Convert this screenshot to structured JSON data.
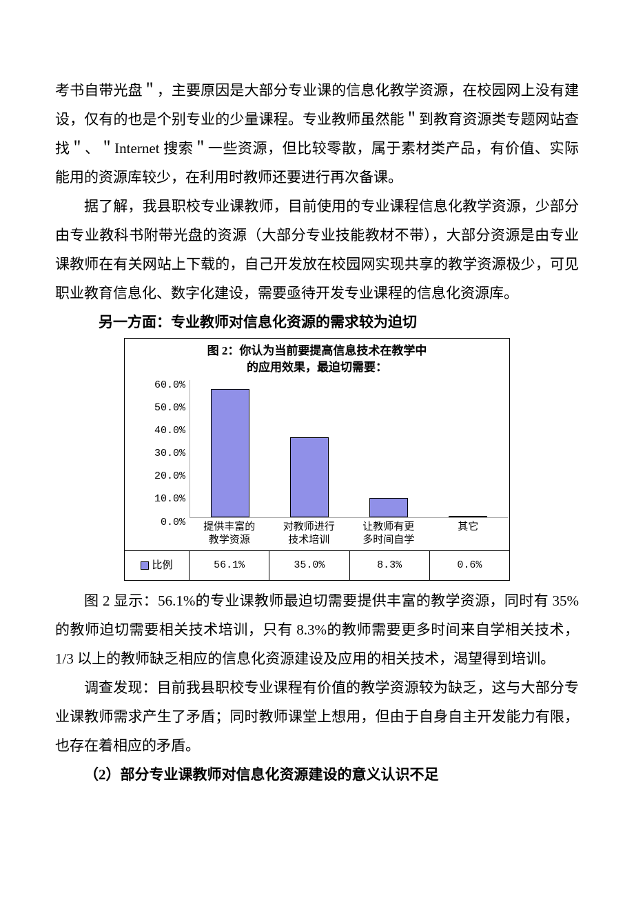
{
  "paragraphs": {
    "p1": "考书自带光盘＂，主要原因是大部分专业课的信息化教学资源，在校园网上没有建设，仅有的也是个别专业的少量课程。专业教师虽然能＂到教育资源类专题网站查找＂、＂Internet 搜索＂一些资源，但比较零散，属于素材类产品，有价值、实际能用的资源库较少，在利用时教师还要进行再次备课。",
    "p2": "据了解，我县职校专业课教师，目前使用的专业课程信息化教学资源，少部分由专业教科书附带光盘的资源（大部分专业技能教材不带），大部分资源是由专业课教师在有关网站上下载的，自己开发放在校园网实现共享的教学资源极少，可见职业教育信息化、数字化建设，需要亟待开发专业课程的信息化资源库。",
    "h1": "另一方面：专业教师对信息化资源的需求较为迫切",
    "p3": "图 2 显示：56.1%的专业课教师最迫切需要提供丰富的教学资源，同时有 35%的教师迫切需要相关技术培训，只有 8.3%的教师需要更多时间来自学相关技术，1/3 以上的教师缺乏相应的信息化资源建设及应用的相关技术，渴望得到培训。",
    "p4": "调查发现：目前我县职校专业课程有价值的教学资源较为缺乏，这与大部分专业课教师需求产生了矛盾；同时教师课堂上想用，但由于自身自主开发能力有限，也存在着相应的矛盾。",
    "h2": "（2）部分专业课教师对信息化资源建设的意义认识不足"
  },
  "chart": {
    "type": "bar",
    "title_line1": "图 2：你认为当前要提高信息技术在教学中",
    "title_line2": "的应用效果，最迫切需要：",
    "y_ticks": [
      "60.0%",
      "50.0%",
      "40.0%",
      "30.0%",
      "20.0%",
      "10.0%",
      "0.0%"
    ],
    "ylim_max": 60.0,
    "categories": [
      {
        "line1": "提供丰富的",
        "line2": "教学资源"
      },
      {
        "line1": "对教师进行",
        "line2": "技术培训"
      },
      {
        "line1": "让教师有更",
        "line2": "多时间自学"
      },
      {
        "line1": "其它",
        "line2": ""
      }
    ],
    "values": [
      56.1,
      35.0,
      8.3,
      0.6
    ],
    "value_labels": [
      "56.1%",
      "35.0%",
      "8.3%",
      "0.6%"
    ],
    "legend_label": "比例",
    "bar_color": "#9090e8",
    "bar_border": "#000000",
    "background": "#ffffff",
    "axis_color": "#aaaaaa",
    "text_color": "#000000",
    "title_fontsize": 17,
    "label_fontsize": 15
  }
}
